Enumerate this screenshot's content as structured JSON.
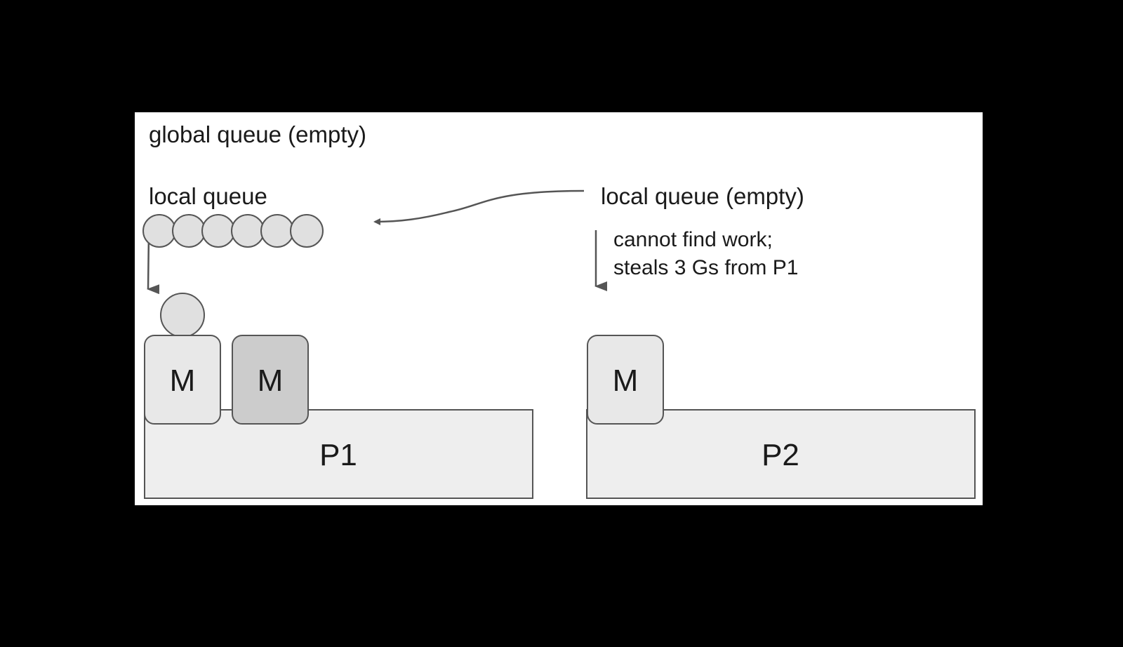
{
  "colors": {
    "page_background": "#000000",
    "panel_background": "#ffffff",
    "processor_fill": "#eeeeee",
    "machine_fill": "#e8e8e8",
    "machine_fill_dark": "#cccccc",
    "goroutine_fill": "#e0e0e0",
    "stroke": "#555555",
    "text": "#1a1a1a"
  },
  "labels": {
    "global_queue": "global queue (empty)",
    "p1_local_queue": "local queue",
    "p2_local_queue": "local queue (empty)",
    "steal_note_line1": "cannot find work;",
    "steal_note_line2": "steals 3 Gs from P1"
  },
  "processors": [
    {
      "name": "P1",
      "queued_goroutines": 6,
      "running_goroutines": 1,
      "machines": [
        {
          "label": "M",
          "state": "running"
        },
        {
          "label": "M",
          "state": "idle"
        }
      ]
    },
    {
      "name": "P2",
      "queued_goroutines": 0,
      "running_goroutines": 0,
      "machines": [
        {
          "label": "M",
          "state": "running"
        }
      ]
    }
  ]
}
